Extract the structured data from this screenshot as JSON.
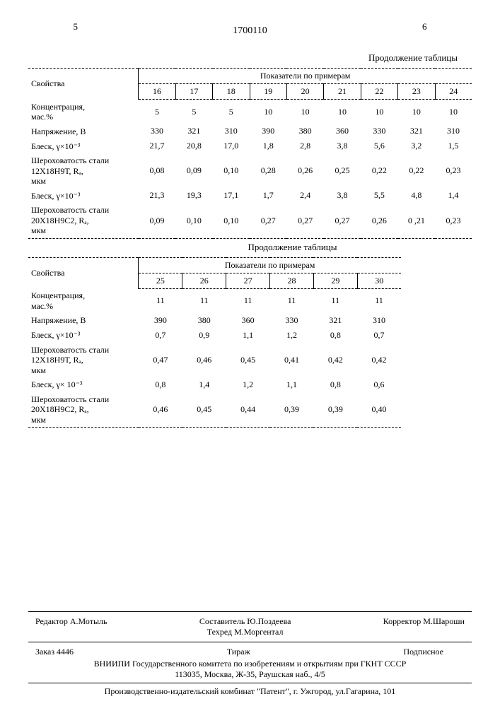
{
  "header": {
    "page_left": "5",
    "page_right": "6",
    "doc_number": "1700110",
    "continuation1": "Продолжение таблицы",
    "continuation2": "Продолжение таблицы"
  },
  "table1": {
    "properties_label": "Свойства",
    "indicators_label": "Показатели по примерам",
    "col_headers": [
      "16",
      "17",
      "18",
      "19",
      "20",
      "21",
      "22",
      "23",
      "24"
    ],
    "rows": [
      {
        "label": "Концентрация,\nмас.%",
        "vals": [
          "5",
          "5",
          "5",
          "10",
          "10",
          "10",
          "10",
          "10",
          "10"
        ]
      },
      {
        "label": "Напряжение, В",
        "vals": [
          "330",
          "321",
          "310",
          "390",
          "380",
          "360",
          "330",
          "321",
          "310"
        ]
      },
      {
        "label": "Блеск, γ×10⁻³",
        "vals": [
          "21,7",
          "20,8",
          "17,0",
          "1,8",
          "2,8",
          "3,8",
          "5,6",
          "3,2",
          "1,5"
        ]
      },
      {
        "label": "Шероховатость стали 12Х18Н9Т, Rₐ,\nмкм",
        "vals": [
          "0,08",
          "0,09",
          "0,10",
          "0,28",
          "0,26",
          "0,25",
          "0,22",
          "0,22",
          "0,23"
        ]
      },
      {
        "label": "Блеск, γ×10⁻³",
        "vals": [
          "21,3",
          "19,3",
          "17,1",
          "1,7",
          "2,4",
          "3,8",
          "5,5",
          "4,8",
          "1,4"
        ]
      },
      {
        "label": "Шероховатость стали 20Х18Н9С2, Rₐ,\nмкм",
        "vals": [
          "0,09",
          "0,10",
          "0,10",
          "0,27",
          "0,27",
          "0,27",
          "0,26",
          "0 ,21",
          "0,23"
        ]
      }
    ]
  },
  "table2": {
    "properties_label": "Свойства",
    "indicators_label": "Показатели по примерам",
    "col_headers": [
      "25",
      "26",
      "27",
      "28",
      "29",
      "30"
    ],
    "rows": [
      {
        "label": "Концентрация,\nмас.%",
        "vals": [
          "11",
          "11",
          "11",
          "11",
          "11",
          "11"
        ]
      },
      {
        "label": "Напряжение, В",
        "vals": [
          "390",
          "380",
          "360",
          "330",
          "321",
          "310"
        ]
      },
      {
        "label": "Блеск, γ×10⁻³",
        "vals": [
          "0,7",
          "0,9",
          "1,1",
          "1,2",
          "0,8",
          "0,7"
        ]
      },
      {
        "label": "Шероховатость стали 12Х18Н9Т, Rₐ,\nмкм",
        "vals": [
          "0,47",
          "0,46",
          "0,45",
          "0,41",
          "0,42",
          "0,42"
        ]
      },
      {
        "label": "Блеск, γ× 10⁻³",
        "vals": [
          "0,8",
          "1,4",
          "1,2",
          "1,1",
          "0,8",
          "0,6"
        ]
      },
      {
        "label": "Шероховатость стали 20Х18Н9С2, Rₐ,\nмкм",
        "vals": [
          "0,46",
          "0,45",
          "0,44",
          "0,39",
          "0,39",
          "0,40"
        ]
      }
    ]
  },
  "footer": {
    "editor": "Редактор А.Мотыль",
    "compiler": "Составитель Ю.Поздеева",
    "techred": "Техред М.Моргентал",
    "corrector": "Корректор М.Шароши",
    "order": "Заказ 4446",
    "tirage": "Тираж",
    "subscription": "Подписное",
    "org_line1": "ВНИИПИ Государственного комитета по изобретениям и открытиям при ГКНТ СССР",
    "org_line2": "113035, Москва, Ж-35, Раушская наб., 4/5",
    "print": "Производственно-издательский комбинат \"Патент\", г. Ужгород, ул.Гагарина, 101"
  }
}
